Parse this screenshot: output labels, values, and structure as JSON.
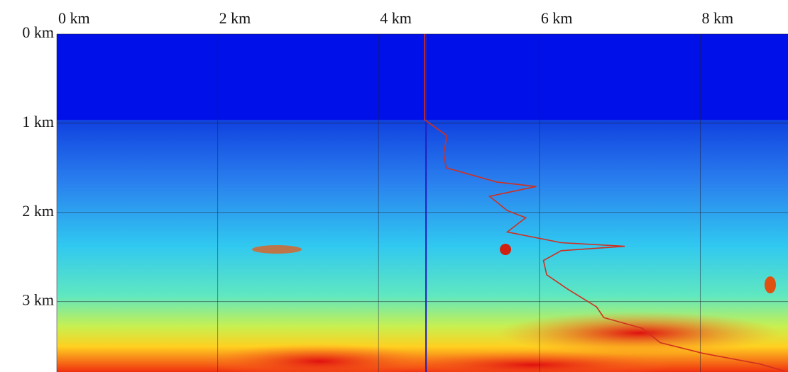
{
  "chart_data": {
    "type": "line",
    "xlim": [
      0,
      9.09
    ],
    "ylim": [
      0,
      3.79
    ],
    "y_inverted": true,
    "grid": true,
    "xticks": [
      {
        "value": 0,
        "label": "0 km"
      },
      {
        "value": 2,
        "label": "2 km"
      },
      {
        "value": 4,
        "label": "4 km"
      },
      {
        "value": 6,
        "label": "6 km"
      },
      {
        "value": 8,
        "label": "8 km"
      }
    ],
    "yticks": [
      {
        "value": 0,
        "label": "0 km"
      },
      {
        "value": 1,
        "label": "1 km"
      },
      {
        "value": 2,
        "label": "2 km"
      },
      {
        "value": 3,
        "label": "3 km"
      }
    ],
    "well_x": 4.59,
    "well_color": "#2020c0",
    "series": [
      {
        "color": "#d03020",
        "x": [
          4.57,
          4.57,
          4.85,
          4.81,
          4.84,
          5.47,
          5.96,
          5.38,
          5.6,
          5.83,
          5.6,
          6.27,
          7.06,
          6.27,
          6.05,
          6.09,
          6.35,
          6.71,
          6.8,
          7.28,
          7.5,
          8.03,
          8.74,
          9.05
        ],
        "values": [
          0,
          0.96,
          1.14,
          1.34,
          1.5,
          1.66,
          1.71,
          1.82,
          1.98,
          2.06,
          2.22,
          2.34,
          2.38,
          2.43,
          2.54,
          2.7,
          2.86,
          3.06,
          3.18,
          3.3,
          3.46,
          3.58,
          3.7,
          3.78
        ]
      }
    ]
  }
}
